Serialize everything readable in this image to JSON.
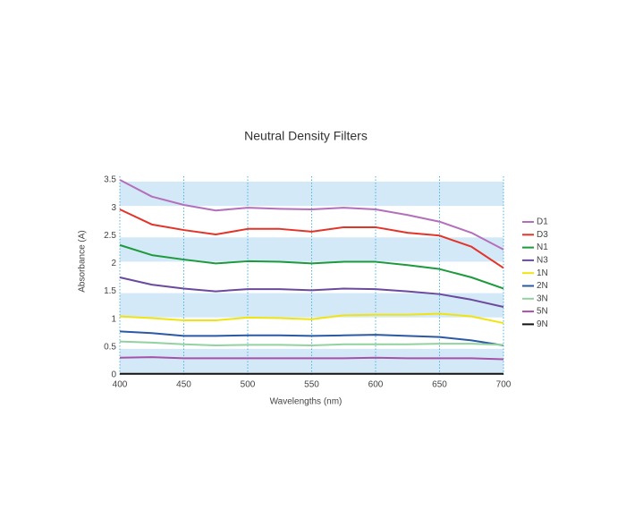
{
  "chart_data": {
    "type": "line",
    "title": "Neutral Density Filters",
    "x_label": "Wavelengths (nm)",
    "y_label": "Absorbance (A)",
    "x": [
      400,
      425,
      450,
      475,
      500,
      525,
      550,
      575,
      600,
      625,
      650,
      675,
      700
    ],
    "xlim": [
      400,
      700
    ],
    "xticks": [
      400,
      450,
      500,
      550,
      600,
      650,
      700
    ],
    "ylim": [
      0,
      3.5
    ],
    "yticks": [
      0,
      0.5,
      1,
      1.5,
      2,
      2.5,
      3,
      3.5
    ],
    "grid": true,
    "bands": true,
    "legend": "right",
    "series": [
      {
        "name": "D1",
        "color": "#b46fbb",
        "values": [
          3.5,
          3.2,
          3.05,
          2.95,
          3.0,
          2.98,
          2.97,
          3.0,
          2.97,
          2.87,
          2.75,
          2.55,
          2.25
        ]
      },
      {
        "name": "D3",
        "color": "#e3342a",
        "values": [
          2.97,
          2.7,
          2.6,
          2.52,
          2.62,
          2.62,
          2.57,
          2.65,
          2.65,
          2.55,
          2.5,
          2.3,
          1.92
        ]
      },
      {
        "name": "N1",
        "color": "#1c9a3c",
        "values": [
          2.33,
          2.15,
          2.07,
          2.0,
          2.04,
          2.03,
          2.0,
          2.03,
          2.03,
          1.97,
          1.9,
          1.75,
          1.55
        ]
      },
      {
        "name": "N3",
        "color": "#6b4a9e",
        "values": [
          1.75,
          1.62,
          1.55,
          1.5,
          1.54,
          1.54,
          1.52,
          1.55,
          1.54,
          1.5,
          1.45,
          1.35,
          1.22
        ]
      },
      {
        "name": "1N",
        "color": "#f0e410",
        "values": [
          1.05,
          1.02,
          0.98,
          0.98,
          1.03,
          1.02,
          1.0,
          1.07,
          1.08,
          1.08,
          1.1,
          1.05,
          0.93
        ]
      },
      {
        "name": "2N",
        "color": "#2b59a3",
        "values": [
          0.78,
          0.75,
          0.7,
          0.7,
          0.71,
          0.71,
          0.7,
          0.71,
          0.72,
          0.7,
          0.68,
          0.62,
          0.53
        ]
      },
      {
        "name": "3N",
        "color": "#92d2a0",
        "values": [
          0.6,
          0.58,
          0.55,
          0.53,
          0.54,
          0.54,
          0.53,
          0.55,
          0.55,
          0.55,
          0.56,
          0.56,
          0.54
        ]
      },
      {
        "name": "5N",
        "color": "#a652a8",
        "values": [
          0.31,
          0.32,
          0.3,
          0.3,
          0.3,
          0.3,
          0.3,
          0.3,
          0.31,
          0.3,
          0.3,
          0.3,
          0.28
        ]
      },
      {
        "name": "9N",
        "color": "#111111",
        "values": [
          0.02,
          0.02,
          0.02,
          0.02,
          0.02,
          0.02,
          0.02,
          0.02,
          0.02,
          0.02,
          0.02,
          0.02,
          0.02
        ]
      }
    ]
  }
}
